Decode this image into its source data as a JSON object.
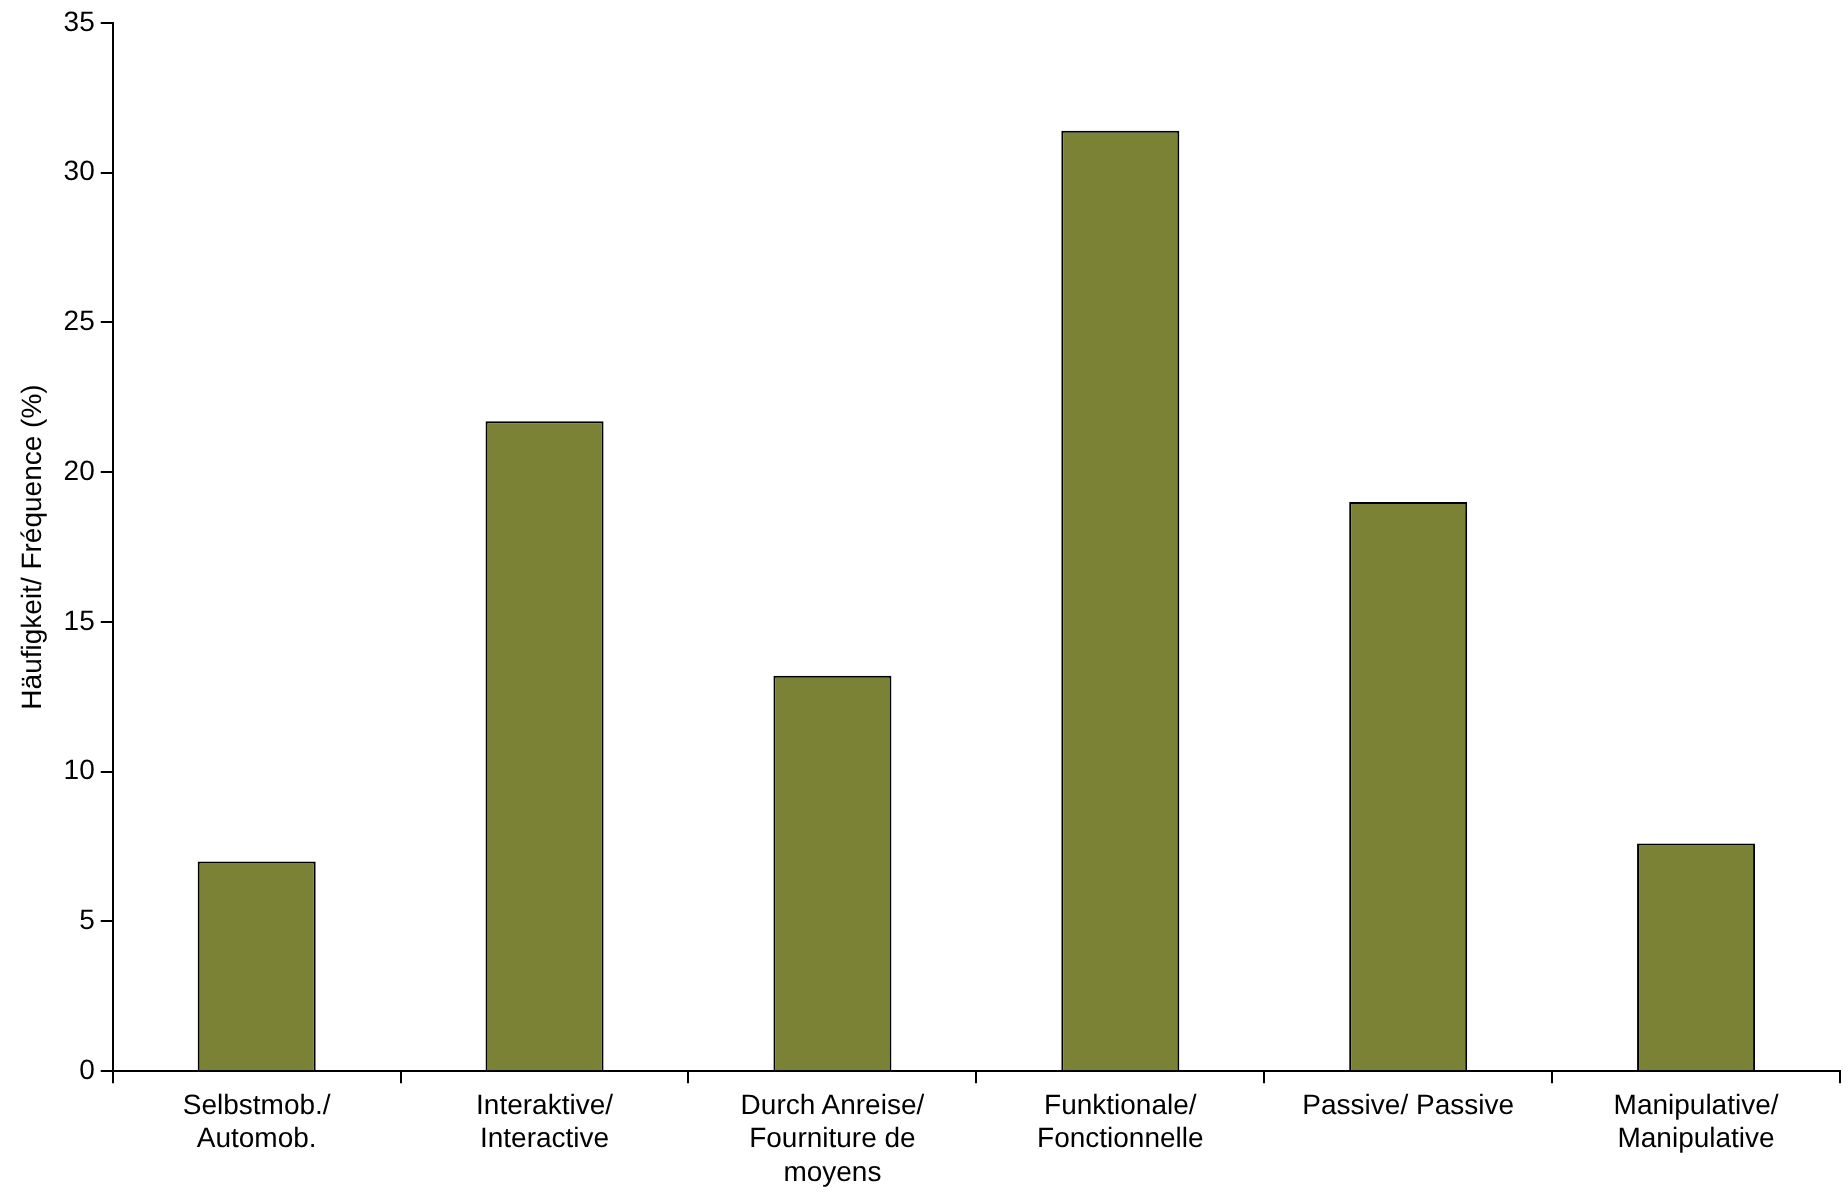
{
  "chart_data": {
    "type": "bar",
    "ylabel": "Häufigkeit/ Fréquence (%)",
    "categories": [
      "Selbstmob./ Automob.",
      "Interaktive/ Interactive",
      "Durch Anreise/ Fourniture de moyens",
      "Funktionale/ Fonctionnelle",
      "Passive/ Passive",
      "Manipulative/ Manipulative"
    ],
    "values": [
      7.0,
      21.7,
      13.2,
      31.4,
      19.0,
      7.6
    ],
    "color": "#7b8135",
    "ylim": [
      0,
      35
    ],
    "yticks": [
      0,
      5,
      10,
      15,
      20,
      25,
      30,
      35
    ],
    "grid": false,
    "legend": false
  }
}
